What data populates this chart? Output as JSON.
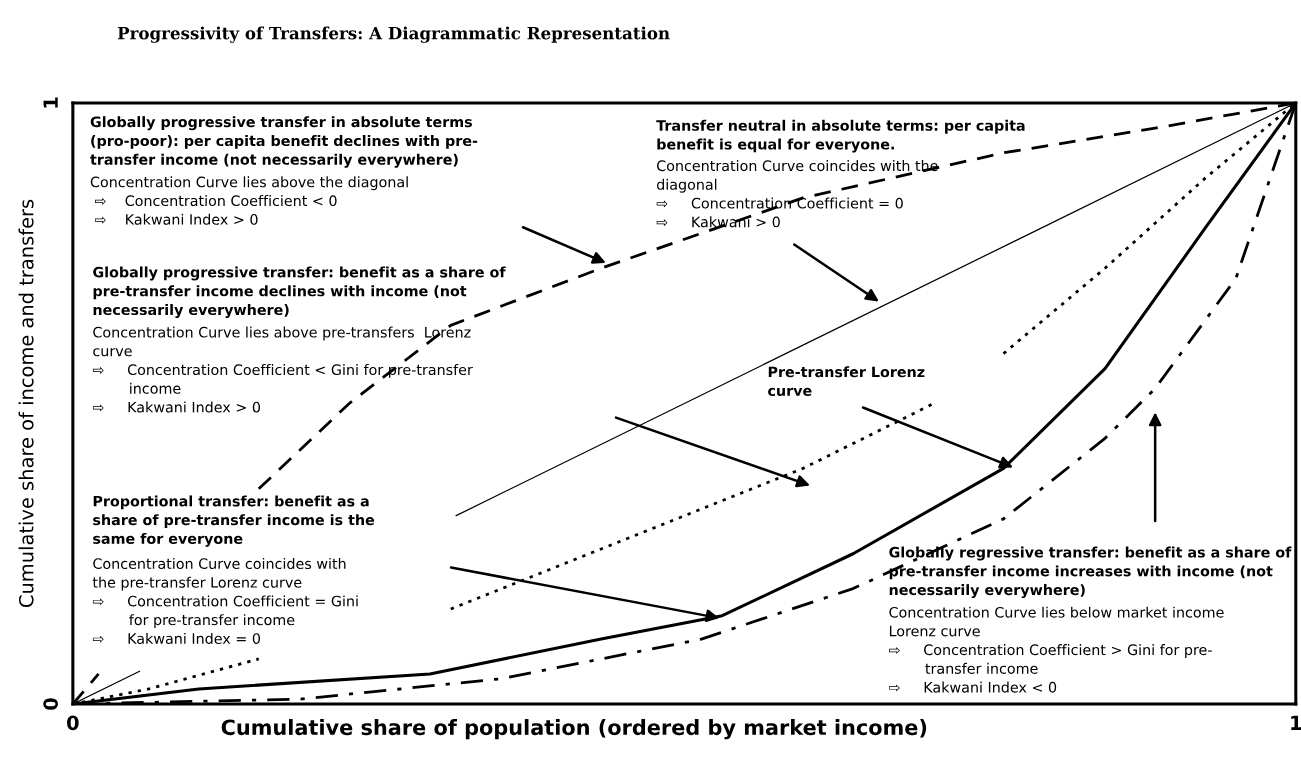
{
  "chart_data": {
    "type": "line",
    "title": "Progressivity of Transfers: A Diagrammatic Representation",
    "xlabel": "Cumulative share of population (ordered by market income)",
    "ylabel": "Cumulative share of income and transfers",
    "xlim": [
      0,
      1
    ],
    "ylim": [
      0,
      1
    ],
    "xticks": [
      0,
      1
    ],
    "yticks": [
      0,
      1
    ],
    "legend": false,
    "marker": "none",
    "series": [
      {
        "color": "#000000",
        "line_style": "solid",
        "x": [
          0,
          0.055,
          0.2,
          0.313,
          1
        ],
        "values": [
          0,
          0.055,
          null,
          0.313,
          1
        ]
      },
      {
        "color": "#000000",
        "line_style": "dashed",
        "x": [
          0,
          0.021,
          0.08,
          0.152,
          0.226,
          0.309,
          0.432,
          0.597,
          0.761,
          0.885,
          1
        ],
        "values": [
          0,
          0.05,
          null,
          0.358,
          0.5,
          0.63,
          0.725,
          0.842,
          0.917,
          0.958,
          1
        ]
      },
      {
        "color": "#000000",
        "line_style": "dotted",
        "x": [
          0,
          0.062,
          0.152,
          0.23,
          0.309,
          0.432,
          0.597,
          0.704,
          0.73,
          0.761,
          0.844,
          0.926,
          1
        ],
        "values": [
          0,
          0.025,
          0.075,
          null,
          0.158,
          0.258,
          0.392,
          0.5,
          null,
          0.583,
          0.725,
          0.875,
          1
        ]
      },
      {
        "color": "#000000",
        "line_style": "solid",
        "x": [
          0,
          0.103,
          0.292,
          0.432,
          0.531,
          0.638,
          0.761,
          0.844,
          0.926,
          1
        ],
        "values": [
          0,
          0.025,
          0.05,
          0.108,
          0.147,
          0.25,
          0.392,
          0.558,
          0.792,
          1
        ]
      },
      {
        "color": "#000000",
        "line_style": "dashdot",
        "x": [
          0,
          0.185,
          0.35,
          0.514,
          0.638,
          0.761,
          0.844,
          0.885,
          0.951,
          1
        ],
        "values": [
          0,
          0.008,
          0.042,
          0.108,
          0.192,
          0.308,
          0.442,
          0.525,
          0.708,
          1
        ]
      }
    ],
    "annotations": [
      "Globally progressive transfer in absolute terms\n(pro-poor): per capita benefit declines with pre-\ntransfer income (not necessarily everywhere)",
      "Concentration Curve lies above the diagonal\n ⇨    Concentration Coefficient < 0\n ⇨    Kakwani Index > 0",
      "Transfer neutral in absolute terms: per capita\nbenefit is equal for everyone.",
      "Concentration Curve coincides with the\ndiagonal\n⇨     Concentration Coefficient = 0\n⇨     Kakwani > 0",
      "Globally progressive transfer: benefit as a share of\npre-transfer income declines with income (not\nnecessarily everywhere)",
      "Concentration Curve lies above pre-transfers  Lorenz\ncurve\n⇨     Concentration Coefficient < Gini for pre-transfer\n        income\n⇨     Kakwani Index > 0",
      "Pre-transfer Lorenz\ncurve",
      "Proportional transfer: benefit as a\nshare of pre-transfer income is the\nsame for everyone",
      "Concentration Curve coincides with\nthe pre-transfer Lorenz curve\n⇨     Concentration Coefficient = Gini\n        for pre-transfer income\n⇨     Kakwani Index = 0",
      "Globally regressive transfer: benefit as a share of\npre-transfer income increases with income (not\nnecessarily everywhere)",
      "Concentration Curve lies below market income\nLorenz curve\n⇨     Concentration Coefficient > Gini for pre-\n        transfer income\n⇨     Kakwani Index < 0"
    ]
  }
}
